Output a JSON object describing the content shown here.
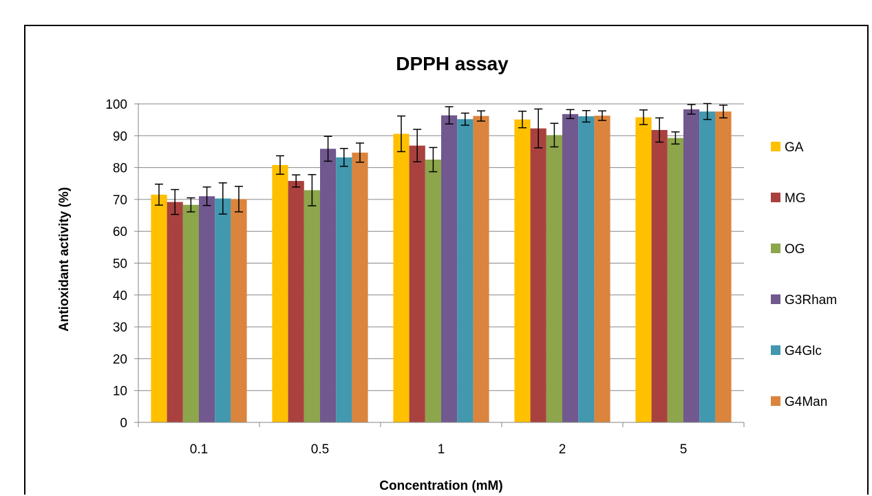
{
  "chart_data": {
    "type": "bar",
    "title": "DPPH assay",
    "xlabel": "Concentration (mM)",
    "ylabel": "Antioxidant activity (%)",
    "ylim": [
      0,
      100
    ],
    "yticks": [
      0,
      10,
      20,
      30,
      40,
      50,
      60,
      70,
      80,
      90,
      100
    ],
    "grid": true,
    "legend_position": "right",
    "categories": [
      "0.1",
      "0.5",
      "1",
      "2",
      "5"
    ],
    "series": [
      {
        "name": "GA",
        "color": "#FFC000",
        "values": [
          71.5,
          80.8,
          90.6,
          95.1,
          95.8
        ],
        "errors": [
          3.3,
          2.9,
          5.6,
          2.6,
          2.3
        ]
      },
      {
        "name": "MG",
        "color": "#A9423F",
        "values": [
          69.2,
          75.8,
          86.9,
          92.3,
          91.8
        ],
        "errors": [
          3.9,
          1.9,
          5.1,
          6.1,
          3.8
        ]
      },
      {
        "name": "OG",
        "color": "#8DA54B",
        "values": [
          68.3,
          72.9,
          82.5,
          90.2,
          89.3
        ],
        "errors": [
          2.2,
          4.9,
          3.8,
          3.7,
          1.9
        ]
      },
      {
        "name": "G3Rham",
        "color": "#71588F",
        "values": [
          71.0,
          85.9,
          96.4,
          96.8,
          98.3
        ],
        "errors": [
          2.9,
          3.9,
          2.7,
          1.4,
          1.5
        ]
      },
      {
        "name": "G4Glc",
        "color": "#4198AF",
        "values": [
          70.3,
          83.2,
          95.2,
          96.1,
          97.6
        ],
        "errors": [
          4.9,
          2.8,
          1.9,
          1.8,
          2.5
        ]
      },
      {
        "name": "G4Man",
        "color": "#DB843D",
        "values": [
          70.1,
          84.7,
          96.2,
          96.3,
          97.6
        ],
        "errors": [
          4.0,
          3.0,
          1.6,
          1.5,
          2.0
        ]
      }
    ]
  }
}
